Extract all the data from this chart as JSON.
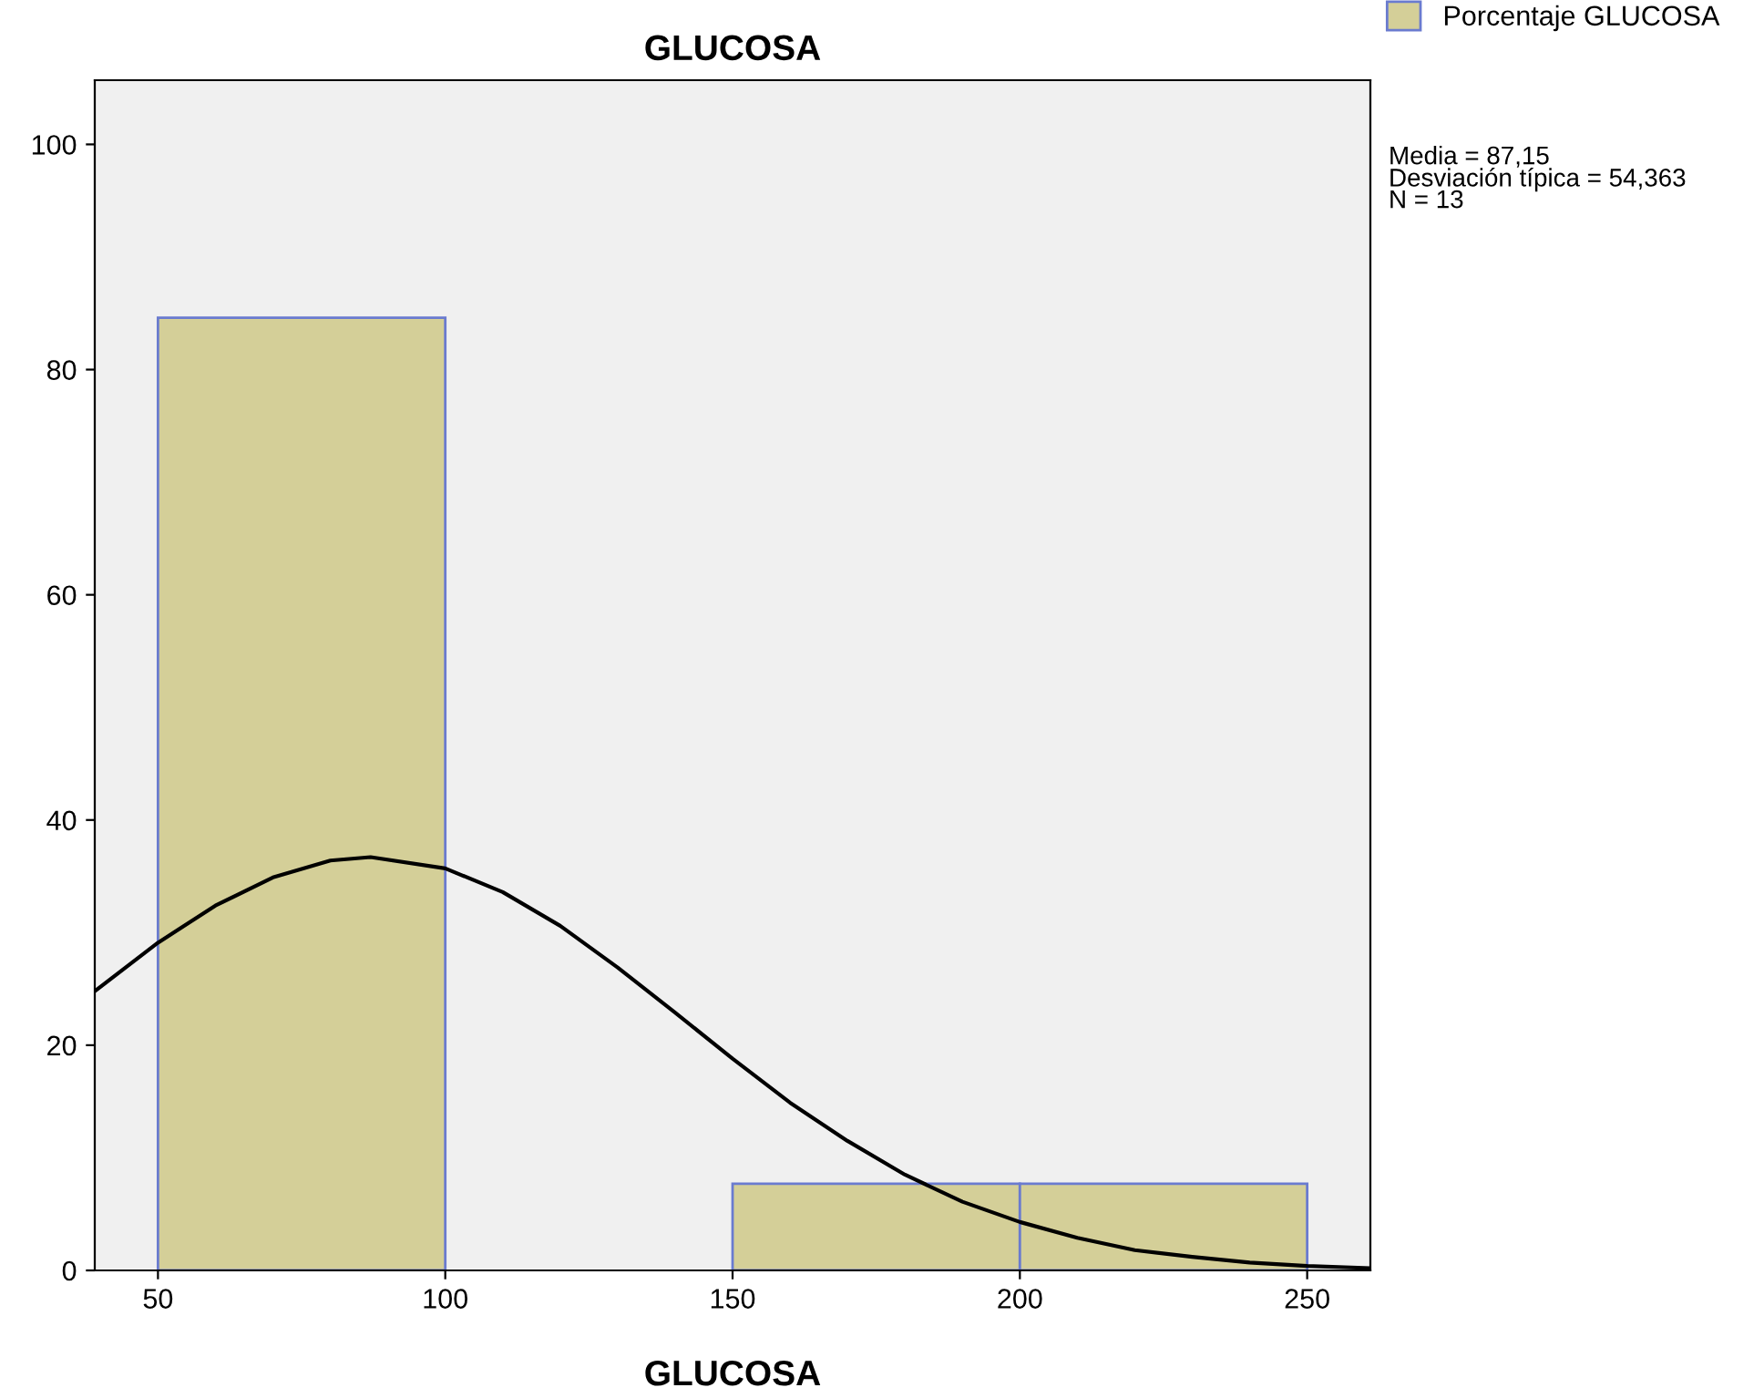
{
  "chart_data": {
    "type": "histogram",
    "title": "GLUCOSA",
    "xlabel": "GLUCOSA",
    "bins": [
      50,
      100,
      150,
      200,
      250
    ],
    "series": [
      {
        "name": "Porcentaje GLUCOSA",
        "color": "#d4cf98",
        "values": [
          84.6,
          0,
          7.7,
          7.7
        ]
      },
      {
        "type": "line",
        "color": "#000000",
        "x": [
          39,
          50,
          60,
          70,
          80,
          87,
          100,
          110,
          120,
          130,
          140,
          150,
          160,
          170,
          180,
          190,
          200,
          210,
          220,
          230,
          240,
          250,
          261
        ],
        "values": [
          24.8,
          29.1,
          32.4,
          34.9,
          36.4,
          36.7,
          35.7,
          33.6,
          30.6,
          26.9,
          22.9,
          18.8,
          14.9,
          11.5,
          8.5,
          6.1,
          4.3,
          2.9,
          1.8,
          1.2,
          0.7,
          0.4,
          0.2
        ]
      }
    ],
    "xlim": [
      39,
      261
    ],
    "xticks": [
      50,
      100,
      150,
      200,
      250
    ],
    "ylim": [
      0,
      105.7
    ],
    "yticks": [
      0,
      20,
      40,
      60,
      80,
      100
    ],
    "grid": false,
    "legend": "top right",
    "annotations": [
      "Media = 87,15",
      "Desviación típica = 54,363",
      "N = 13"
    ]
  }
}
